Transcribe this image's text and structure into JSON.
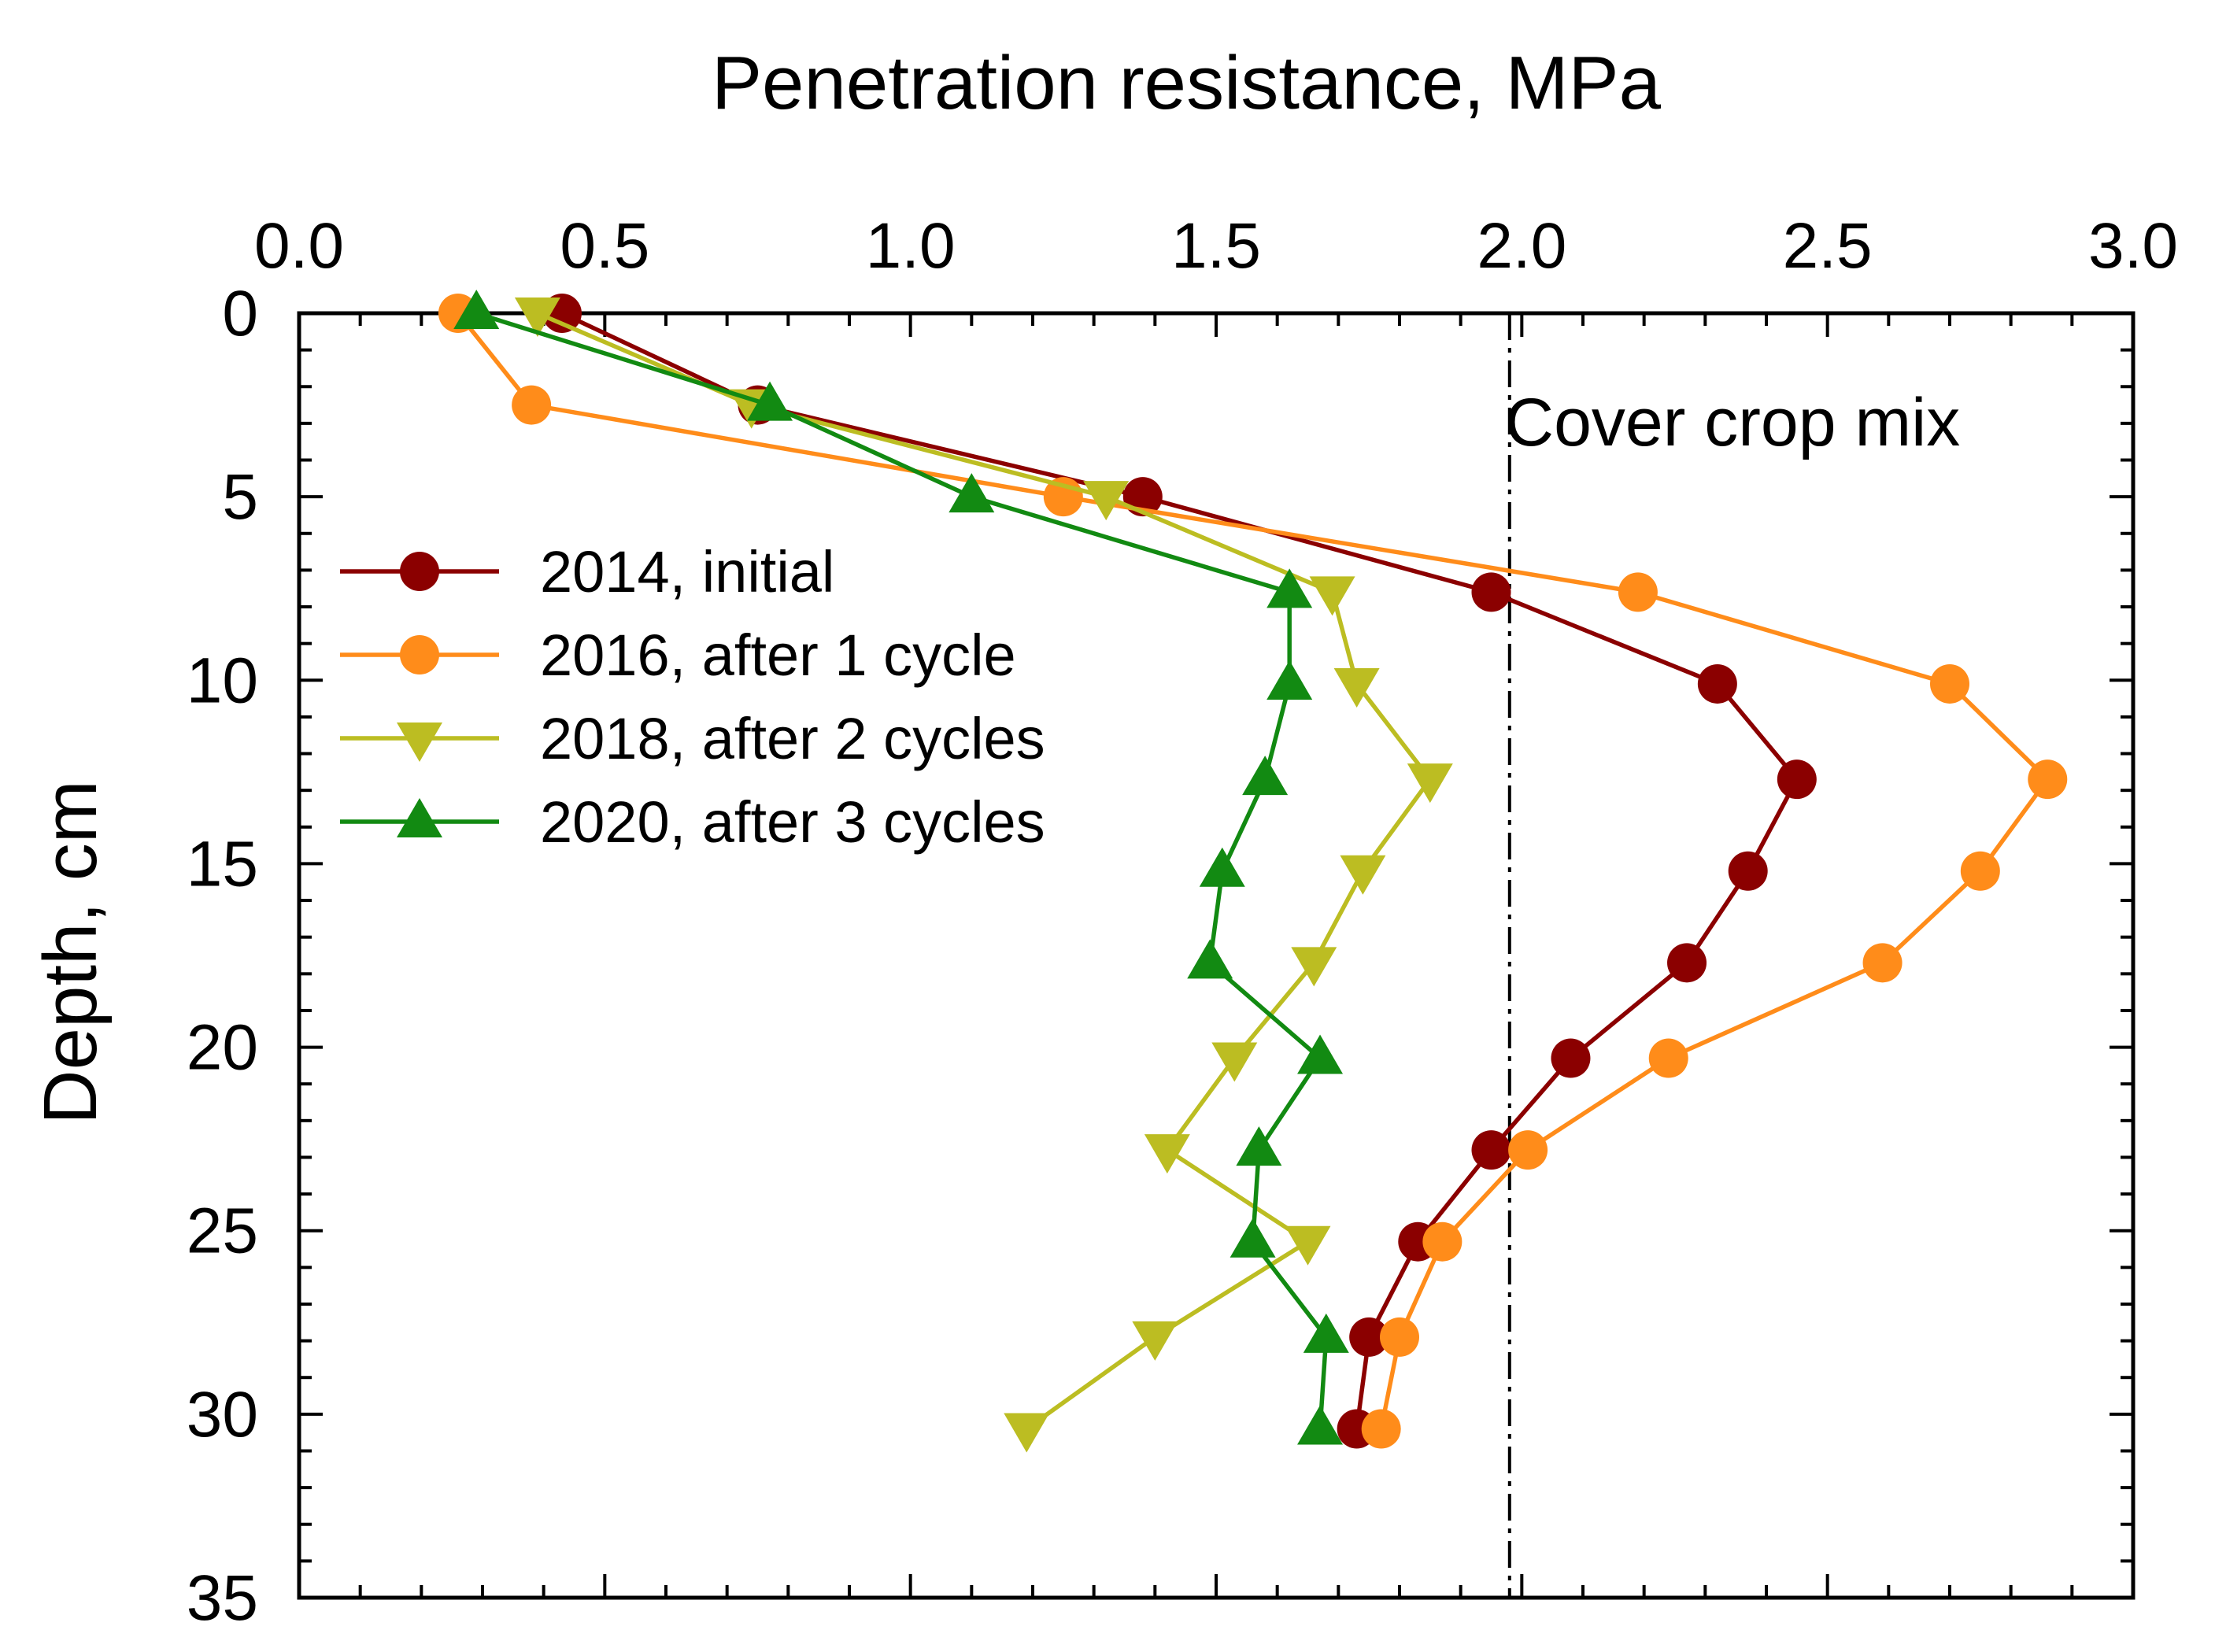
{
  "chart_data": {
    "type": "line",
    "xlabel": "Penetration resistance, MPa",
    "ylabel": "Depth, cm",
    "xlim": [
      0,
      3
    ],
    "ylim": [
      0,
      35
    ],
    "y_inverted": true,
    "x_axis_position": "top",
    "x_ticks": [
      "0.0",
      "0.5",
      "1.0",
      "1.5",
      "2.0",
      "2.5",
      "3.0"
    ],
    "y_ticks": [
      "0",
      "5",
      "10",
      "15",
      "20",
      "25",
      "30",
      "35"
    ],
    "grid": false,
    "legend_position": "middle-left",
    "annotation": "Cover crop mix",
    "reference_line": {
      "x": 1.98,
      "style": "dashed"
    },
    "series": [
      {
        "name": "2014, initial",
        "color": "#8b0000",
        "marker": "circle",
        "points": [
          [
            0.43,
            0
          ],
          [
            0.75,
            2.5
          ],
          [
            1.38,
            5
          ],
          [
            1.95,
            7.6
          ],
          [
            2.32,
            10.1
          ],
          [
            2.45,
            12.7
          ],
          [
            2.37,
            15.2
          ],
          [
            2.27,
            17.7
          ],
          [
            2.08,
            20.3
          ],
          [
            1.95,
            22.8
          ],
          [
            1.83,
            25.3
          ],
          [
            1.75,
            27.9
          ],
          [
            1.73,
            30.4
          ]
        ]
      },
      {
        "name": "2016, after 1 cycle",
        "color": "#ff8c1a",
        "marker": "circle",
        "points": [
          [
            0.26,
            0
          ],
          [
            0.38,
            2.5
          ],
          [
            1.25,
            5
          ],
          [
            2.19,
            7.6
          ],
          [
            2.7,
            10.1
          ],
          [
            2.86,
            12.7
          ],
          [
            2.75,
            15.2
          ],
          [
            2.59,
            17.7
          ],
          [
            2.24,
            20.3
          ],
          [
            2.01,
            22.8
          ],
          [
            1.87,
            25.3
          ],
          [
            1.8,
            27.9
          ],
          [
            1.77,
            30.4
          ]
        ]
      },
      {
        "name": "2018, after 2 cycles",
        "color": "#bcbd22",
        "marker": "triangle-down",
        "points": [
          [
            0.39,
            0
          ],
          [
            0.74,
            2.5
          ],
          [
            1.32,
            5
          ],
          [
            1.69,
            7.6
          ],
          [
            1.73,
            10.1
          ],
          [
            1.85,
            12.7
          ],
          [
            1.74,
            15.2
          ],
          [
            1.66,
            17.7
          ],
          [
            1.53,
            20.3
          ],
          [
            1.42,
            22.8
          ],
          [
            1.65,
            25.3
          ],
          [
            1.4,
            27.9
          ],
          [
            1.19,
            30.4
          ]
        ]
      },
      {
        "name": "2020, after 3 cycles",
        "color": "#128a12",
        "marker": "triangle-up",
        "points": [
          [
            0.29,
            0
          ],
          [
            0.77,
            2.5
          ],
          [
            1.1,
            5
          ],
          [
            1.62,
            7.6
          ],
          [
            1.62,
            10.1
          ],
          [
            1.58,
            12.7
          ],
          [
            1.51,
            15.2
          ],
          [
            1.49,
            17.7
          ],
          [
            1.67,
            20.3
          ],
          [
            1.57,
            22.8
          ],
          [
            1.56,
            25.3
          ],
          [
            1.68,
            27.9
          ],
          [
            1.67,
            30.4
          ]
        ]
      }
    ]
  }
}
